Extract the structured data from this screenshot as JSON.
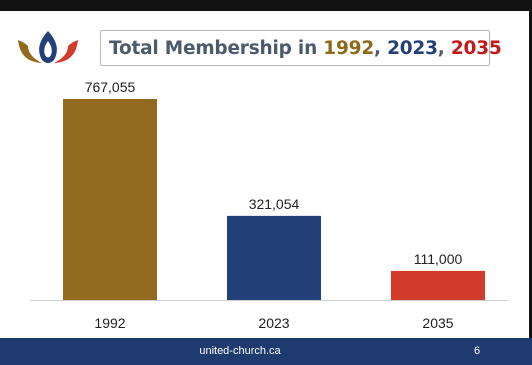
{
  "slide": {
    "title_parts": [
      {
        "text": "Total Membership in ",
        "color": "#4c5a6b"
      },
      {
        "text": "1992",
        "color": "#8b6a1c"
      },
      {
        "text": ", ",
        "color": "#4c5a6b"
      },
      {
        "text": "2023",
        "color": "#24407a"
      },
      {
        "text": ", ",
        "color": "#4c5a6b"
      },
      {
        "text": "2035",
        "color": "#c01a1a"
      }
    ],
    "footer_site": "united-church.ca",
    "page_number": "6"
  },
  "colors": {
    "gold": "#946a20",
    "navy": "#24407a",
    "red": "#d23a2a",
    "footer": "#1e3a6e"
  },
  "chart_data": {
    "type": "bar",
    "title": "Total Membership in 1992, 2023, 2035",
    "categories": [
      "1992",
      "2023",
      "2035"
    ],
    "values": [
      767055,
      321054,
      111000
    ],
    "labels": [
      "767,055",
      "321,054",
      "111,000"
    ],
    "bar_colors": [
      "#946a20",
      "#24407a",
      "#d23a2a"
    ],
    "xlabel": "",
    "ylabel": "",
    "ylim": [
      0,
      767055
    ],
    "grid": false,
    "legend": "none"
  }
}
